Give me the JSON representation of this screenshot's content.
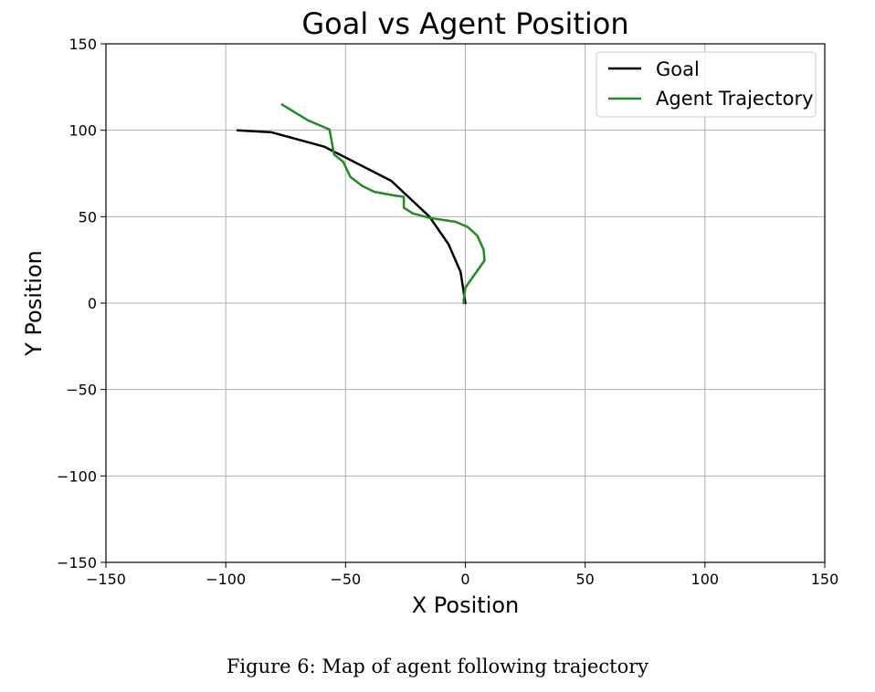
{
  "chart_data": {
    "type": "line",
    "title": "Goal vs Agent Position",
    "xlabel": "X Position",
    "ylabel": "Y Position",
    "xlim": [
      -150,
      150
    ],
    "ylim": [
      -150,
      150
    ],
    "xticks": [
      -150,
      -100,
      -50,
      0,
      50,
      100,
      150
    ],
    "yticks": [
      -150,
      -100,
      -50,
      0,
      50,
      100,
      150
    ],
    "xtick_labels": [
      "−150",
      "−100",
      "−50",
      "0",
      "50",
      "100",
      "150"
    ],
    "ytick_labels": [
      "−150",
      "−100",
      "−50",
      "0",
      "50",
      "100",
      "150"
    ],
    "grid": true,
    "legend_position": "top-right",
    "series": [
      {
        "name": "Goal",
        "color": "#000000",
        "x": [
          -95.1,
          -80.9,
          -58.8,
          -30.9,
          -15.0,
          -7.0,
          -2.0,
          0.0
        ],
        "y": [
          100.0,
          98.8,
          90.5,
          70.7,
          50.0,
          34.0,
          18.0,
          0.0
        ]
      },
      {
        "name": "Agent Trajectory",
        "color": "#228b22",
        "x": [
          -76.5,
          -65.6,
          -56.7,
          -54.8,
          -51.0,
          -48.0,
          -43.0,
          -38.0,
          -30.0,
          -25.7,
          -25.7,
          -22.0,
          -15.0,
          -4.0,
          1.0,
          5.0,
          7.6,
          8.0,
          0.0,
          -0.7,
          -0.7
        ],
        "y": [
          114.8,
          105.7,
          100.4,
          86.0,
          81.8,
          73.0,
          67.7,
          64.4,
          62.3,
          61.5,
          55.2,
          51.9,
          49.3,
          47.0,
          44.0,
          39.0,
          31.0,
          24.6,
          9.0,
          2.0,
          0.0
        ]
      }
    ]
  },
  "caption": "Figure 6: Map of agent following trajectory"
}
